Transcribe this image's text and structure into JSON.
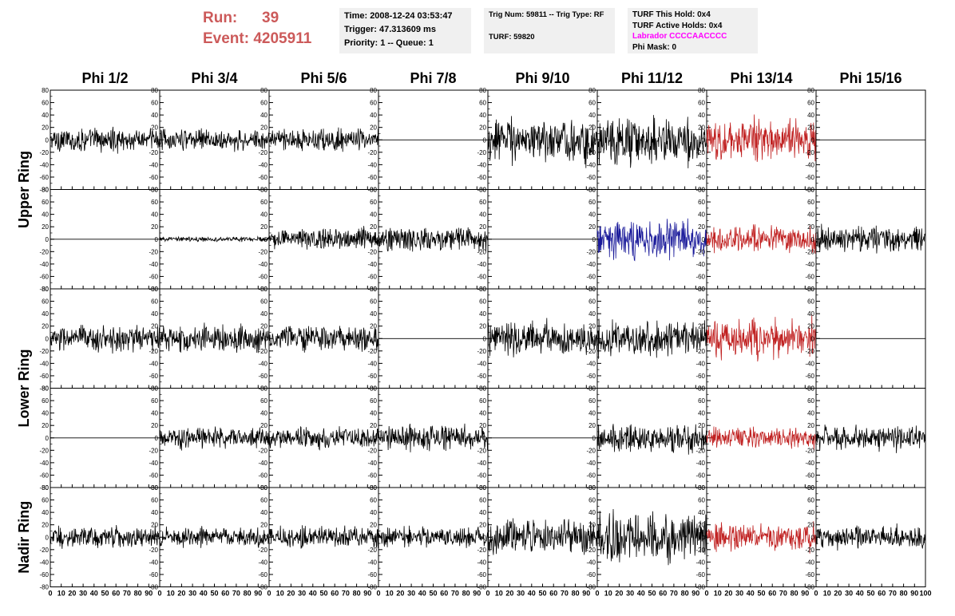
{
  "header": {
    "run_label": "Run:",
    "run_value": "39",
    "event_label": "Event:",
    "event_value": "4205911",
    "time": "Time: 2008-12-24 03:53:47",
    "trigger": "Trigger: 47.313609 ms",
    "priority": "Priority: 1 -- Queue: 1",
    "trig_num": "Trig Num: 59811 -- Trig Type: RF",
    "turf": "TURF: 59820",
    "turf_this_hold": "TURF This Hold: 0x4",
    "turf_active_holds": "TURF Active Holds: 0x4",
    "labrador": "Labrador CCCCAACCCC",
    "phi_mask": "Phi Mask: 0"
  },
  "colors": {
    "run_text": "#cc5a5a",
    "labrador_text": "#ff00ff",
    "trace_black": "#000000",
    "trace_red": "#c02020",
    "trace_blue": "#1a1a9a"
  },
  "chart_data": {
    "type": "line",
    "columns": [
      "Phi 1/2",
      "Phi 3/4",
      "Phi 5/6",
      "Phi 7/8",
      "Phi 9/10",
      "Phi 11/12",
      "Phi 13/14",
      "Phi 15/16"
    ],
    "ring_labels": [
      "Upper Ring",
      "Lower Ring",
      "Nadir Ring"
    ],
    "xlim": [
      0,
      100
    ],
    "ylim": [
      -80,
      80
    ],
    "x_ticks": [
      "0",
      "10",
      "20",
      "30",
      "40",
      "50",
      "60",
      "70",
      "80",
      "90",
      "100"
    ],
    "y_ticks": [
      "80",
      "60",
      "40",
      "20",
      "0",
      "-20",
      "-40",
      "-60",
      "-80"
    ],
    "grid": false,
    "rows": [
      [
        {
          "color": "black",
          "amplitude": 20
        },
        {
          "color": "black",
          "amplitude": 18
        },
        {
          "color": "black",
          "amplitude": 20
        },
        {
          "color": "black",
          "amplitude": 0
        },
        {
          "color": "black",
          "amplitude": 38
        },
        {
          "color": "black",
          "amplitude": 38
        },
        {
          "color": "red",
          "amplitude": 35
        },
        {
          "color": "black",
          "amplitude": 0
        }
      ],
      [
        {
          "color": "black",
          "amplitude": 0
        },
        {
          "color": "black",
          "amplitude": 4
        },
        {
          "color": "black",
          "amplitude": 20
        },
        {
          "color": "black",
          "amplitude": 22
        },
        {
          "color": "black",
          "amplitude": 0
        },
        {
          "color": "blue",
          "amplitude": 32
        },
        {
          "color": "red",
          "amplitude": 22
        },
        {
          "color": "black",
          "amplitude": 22
        }
      ],
      [
        {
          "color": "black",
          "amplitude": 22
        },
        {
          "color": "black",
          "amplitude": 22
        },
        {
          "color": "black",
          "amplitude": 22
        },
        {
          "color": "black",
          "amplitude": 0
        },
        {
          "color": "black",
          "amplitude": 28
        },
        {
          "color": "black",
          "amplitude": 30
        },
        {
          "color": "red",
          "amplitude": 32
        },
        {
          "color": "black",
          "amplitude": 0
        }
      ],
      [
        {
          "color": "black",
          "amplitude": 0
        },
        {
          "color": "black",
          "amplitude": 18
        },
        {
          "color": "black",
          "amplitude": 18
        },
        {
          "color": "black",
          "amplitude": 22
        },
        {
          "color": "black",
          "amplitude": 0
        },
        {
          "color": "black",
          "amplitude": 24
        },
        {
          "color": "red",
          "amplitude": 18
        },
        {
          "color": "black",
          "amplitude": 20
        }
      ],
      [
        {
          "color": "black",
          "amplitude": 18
        },
        {
          "color": "black",
          "amplitude": 16
        },
        {
          "color": "black",
          "amplitude": 18
        },
        {
          "color": "black",
          "amplitude": 16
        },
        {
          "color": "black",
          "amplitude": 28
        },
        {
          "color": "black",
          "amplitude": 42
        },
        {
          "color": "red",
          "amplitude": 24
        },
        {
          "color": "black",
          "amplitude": 20
        }
      ]
    ]
  }
}
